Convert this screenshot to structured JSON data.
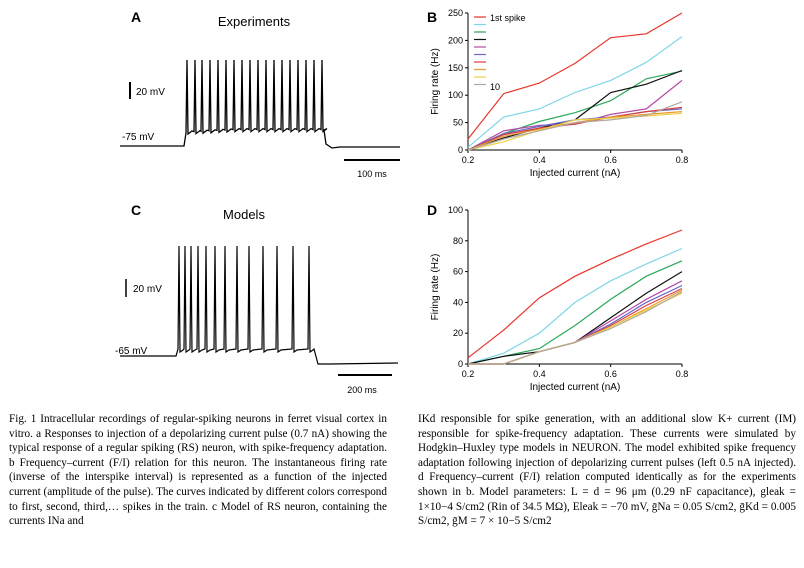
{
  "panels": {
    "A": {
      "letter": "A",
      "title": "Experiments",
      "scale_mv": "20 mV",
      "rest": "-75 mV",
      "scale_ms": "100 ms"
    },
    "B": {
      "letter": "B"
    },
    "C": {
      "letter": "C",
      "title": "Models",
      "scale_mv": "20 mV",
      "rest": "-65 mV",
      "scale_ms": "200 ms"
    },
    "D": {
      "letter": "D"
    }
  },
  "colors": [
    "#e8352a",
    "#7fd6e8",
    "#2aa85a",
    "#111111",
    "#b54aa8",
    "#6666cc",
    "#d84040",
    "#e89a30",
    "#eed040",
    "#b0a8a0"
  ],
  "chart_data": [
    {
      "type": "line",
      "panel": "B",
      "xlabel": "Injected current (nA)",
      "ylabel": "Firing rate (Hz)",
      "xlim": [
        0.2,
        0.8
      ],
      "ylim": [
        0,
        250
      ],
      "xticks": [
        "0.2",
        "0.4",
        "0.6",
        "0.8"
      ],
      "yticks": [
        "0",
        "50",
        "100",
        "150",
        "200",
        "250"
      ],
      "legend": {
        "first": "1st spike",
        "last": "10",
        "placement": "top-left"
      },
      "x": [
        0.2,
        0.3,
        0.4,
        0.5,
        0.6,
        0.7,
        0.8
      ],
      "series": [
        {
          "values": [
            20,
            103,
            122,
            158,
            205,
            212,
            250
          ]
        },
        {
          "values": [
            5,
            60,
            75,
            105,
            127,
            160,
            207
          ]
        },
        {
          "values": [
            0,
            30,
            52,
            68,
            90,
            130,
            144
          ]
        },
        {
          "values": [
            0,
            22,
            40,
            55,
            105,
            120,
            145
          ]
        },
        {
          "values": [
            0,
            35,
            45,
            47,
            65,
            75,
            127
          ]
        },
        {
          "values": [
            0,
            30,
            43,
            55,
            60,
            70,
            75
          ]
        },
        {
          "values": [
            0,
            28,
            40,
            47,
            60,
            70,
            78
          ]
        },
        {
          "values": [
            0,
            25,
            38,
            50,
            60,
            65,
            70
          ]
        },
        {
          "values": [
            0,
            15,
            36,
            55,
            58,
            62,
            67
          ]
        },
        {
          "values": [
            0,
            20,
            35,
            50,
            55,
            63,
            88
          ]
        }
      ]
    },
    {
      "type": "line",
      "panel": "D",
      "xlabel": "Injected current (nA)",
      "ylabel": "Firing rate (Hz)",
      "xlim": [
        0.2,
        0.8
      ],
      "ylim": [
        0,
        100
      ],
      "xticks": [
        "0.2",
        "0.4",
        "0.6",
        "0.8"
      ],
      "yticks": [
        "0",
        "20",
        "40",
        "60",
        "80",
        "100"
      ],
      "x": [
        0.2,
        0.3,
        0.4,
        0.5,
        0.6,
        0.7,
        0.8
      ],
      "series": [
        {
          "values": [
            4,
            22,
            43,
            57,
            68,
            78,
            87
          ]
        },
        {
          "values": [
            0,
            7,
            20,
            40,
            54,
            65,
            75
          ]
        },
        {
          "values": [
            0,
            5,
            10,
            25,
            42,
            57,
            67
          ]
        },
        {
          "values": [
            0,
            5,
            8,
            14,
            30,
            46,
            60
          ]
        },
        {
          "values": [
            0,
            0,
            8,
            14,
            28,
            42,
            54
          ]
        },
        {
          "values": [
            0,
            0,
            8,
            14,
            26,
            40,
            51
          ]
        },
        {
          "values": [
            0,
            0,
            8,
            14,
            25,
            38,
            49
          ]
        },
        {
          "values": [
            0,
            0,
            8,
            14,
            24,
            36,
            48
          ]
        },
        {
          "values": [
            0,
            0,
            8,
            14,
            24,
            35,
            46
          ]
        },
        {
          "values": [
            0,
            0,
            8,
            14,
            23,
            34,
            47
          ]
        }
      ]
    }
  ],
  "caption": {
    "left": "Fig. 1 Intracellular recordings of regular-spiking neurons in ferret visual cortex in vitro. a Responses to injection of a depolarizing current pulse (0.7 nA) showing the typical response of a regular spiking (RS) neuron, with spike-frequency adaptation. b Frequency–current (F/I) relation for this neuron. The instantaneous firing rate (inverse of the interspike interval) is represented as a function of the injected current (amplitude of the pulse). The curves indicated by different colors correspond to first, second, third,… spikes in the train. c Model of RS neuron, containing the currents INa and",
    "right": "IKd responsible for spike generation, with an additional slow K+ current (IM) responsible for spike-frequency adaptation. These currents were simulated by Hodgkin–Huxley type models in NEURON. The model exhibited spike frequency adaptation following injection of depolarizing current pulses (left 0.5 nA injected). d Frequency–current (F/I) relation computed identically as for the experiments shown in b. Model parameters: L = d = 96 μm (0.29 nF capacitance), gleak = 1×10−4 S/cm2 (Rin of 34.5 MΩ), Eleak = −70 mV, ḡNa = 0.05 S/cm2, ḡKd = 0.005 S/cm2, ḡM = 7 × 10−5 S/cm2"
  }
}
